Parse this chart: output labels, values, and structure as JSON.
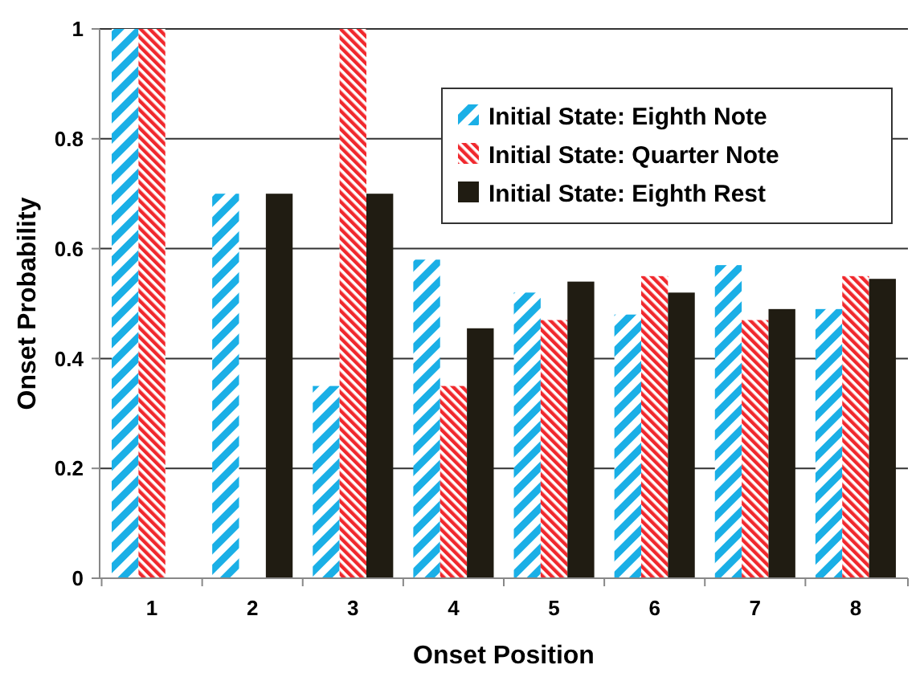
{
  "chart_data": {
    "type": "bar",
    "xlabel": "Onset Position",
    "ylabel": "Onset Probability",
    "categories": [
      "1",
      "2",
      "3",
      "4",
      "5",
      "6",
      "7",
      "8"
    ],
    "series": [
      {
        "name": "Initial State: Eighth Note",
        "color": "#1aafe6",
        "values": [
          1,
          0.7,
          0.35,
          0.58,
          0.52,
          0.48,
          0.57,
          0.49
        ]
      },
      {
        "name": "Initial State: Quarter Note",
        "color": "#f0282d",
        "values": [
          1,
          0,
          1,
          0.35,
          0.47,
          0.55,
          0.47,
          0.55
        ]
      },
      {
        "name": "Initial State: Eighth Rest",
        "color": "#201c12",
        "values": [
          0,
          0.7,
          0.7,
          0.455,
          0.54,
          0.52,
          0.49,
          0.545
        ]
      }
    ],
    "ylim": [
      0,
      1
    ],
    "yticks": [
      0,
      0.2,
      0.4,
      0.6,
      0.8,
      1
    ],
    "grid": "y",
    "legend": "top right"
  }
}
